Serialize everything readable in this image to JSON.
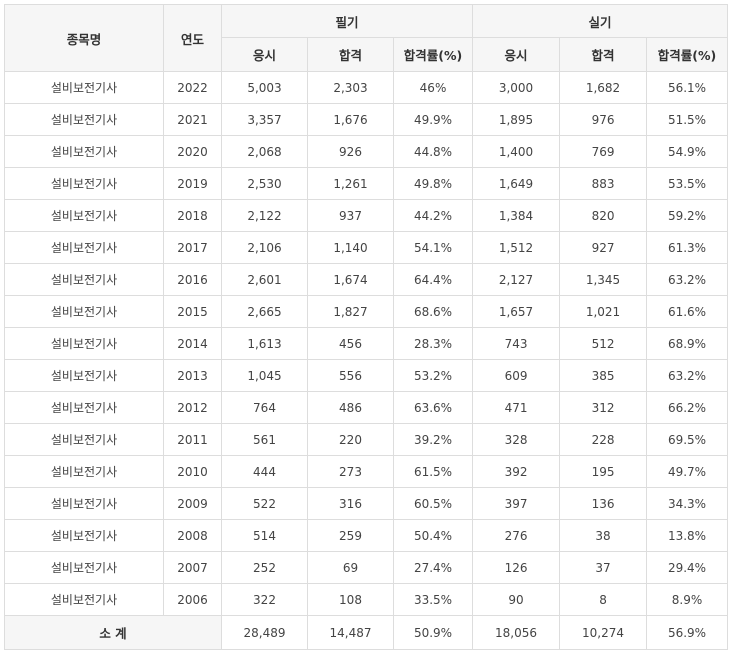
{
  "header": {
    "subject_label": "종목명",
    "year_label": "연도",
    "written_label": "필기",
    "practical_label": "실기",
    "sub": {
      "applicants": "응시",
      "passed": "합격",
      "rate": "합격률(%)"
    }
  },
  "rows": [
    {
      "name": "설비보전기사",
      "year": "2022",
      "w_app": "5,003",
      "w_pass": "2,303",
      "w_rate": "46%",
      "p_app": "3,000",
      "p_pass": "1,682",
      "p_rate": "56.1%"
    },
    {
      "name": "설비보전기사",
      "year": "2021",
      "w_app": "3,357",
      "w_pass": "1,676",
      "w_rate": "49.9%",
      "p_app": "1,895",
      "p_pass": "976",
      "p_rate": "51.5%"
    },
    {
      "name": "설비보전기사",
      "year": "2020",
      "w_app": "2,068",
      "w_pass": "926",
      "w_rate": "44.8%",
      "p_app": "1,400",
      "p_pass": "769",
      "p_rate": "54.9%"
    },
    {
      "name": "설비보전기사",
      "year": "2019",
      "w_app": "2,530",
      "w_pass": "1,261",
      "w_rate": "49.8%",
      "p_app": "1,649",
      "p_pass": "883",
      "p_rate": "53.5%"
    },
    {
      "name": "설비보전기사",
      "year": "2018",
      "w_app": "2,122",
      "w_pass": "937",
      "w_rate": "44.2%",
      "p_app": "1,384",
      "p_pass": "820",
      "p_rate": "59.2%"
    },
    {
      "name": "설비보전기사",
      "year": "2017",
      "w_app": "2,106",
      "w_pass": "1,140",
      "w_rate": "54.1%",
      "p_app": "1,512",
      "p_pass": "927",
      "p_rate": "61.3%"
    },
    {
      "name": "설비보전기사",
      "year": "2016",
      "w_app": "2,601",
      "w_pass": "1,674",
      "w_rate": "64.4%",
      "p_app": "2,127",
      "p_pass": "1,345",
      "p_rate": "63.2%"
    },
    {
      "name": "설비보전기사",
      "year": "2015",
      "w_app": "2,665",
      "w_pass": "1,827",
      "w_rate": "68.6%",
      "p_app": "1,657",
      "p_pass": "1,021",
      "p_rate": "61.6%"
    },
    {
      "name": "설비보전기사",
      "year": "2014",
      "w_app": "1,613",
      "w_pass": "456",
      "w_rate": "28.3%",
      "p_app": "743",
      "p_pass": "512",
      "p_rate": "68.9%"
    },
    {
      "name": "설비보전기사",
      "year": "2013",
      "w_app": "1,045",
      "w_pass": "556",
      "w_rate": "53.2%",
      "p_app": "609",
      "p_pass": "385",
      "p_rate": "63.2%"
    },
    {
      "name": "설비보전기사",
      "year": "2012",
      "w_app": "764",
      "w_pass": "486",
      "w_rate": "63.6%",
      "p_app": "471",
      "p_pass": "312",
      "p_rate": "66.2%"
    },
    {
      "name": "설비보전기사",
      "year": "2011",
      "w_app": "561",
      "w_pass": "220",
      "w_rate": "39.2%",
      "p_app": "328",
      "p_pass": "228",
      "p_rate": "69.5%"
    },
    {
      "name": "설비보전기사",
      "year": "2010",
      "w_app": "444",
      "w_pass": "273",
      "w_rate": "61.5%",
      "p_app": "392",
      "p_pass": "195",
      "p_rate": "49.7%"
    },
    {
      "name": "설비보전기사",
      "year": "2009",
      "w_app": "522",
      "w_pass": "316",
      "w_rate": "60.5%",
      "p_app": "397",
      "p_pass": "136",
      "p_rate": "34.3%"
    },
    {
      "name": "설비보전기사",
      "year": "2008",
      "w_app": "514",
      "w_pass": "259",
      "w_rate": "50.4%",
      "p_app": "276",
      "p_pass": "38",
      "p_rate": "13.8%"
    },
    {
      "name": "설비보전기사",
      "year": "2007",
      "w_app": "252",
      "w_pass": "69",
      "w_rate": "27.4%",
      "p_app": "126",
      "p_pass": "37",
      "p_rate": "29.4%"
    },
    {
      "name": "설비보전기사",
      "year": "2006",
      "w_app": "322",
      "w_pass": "108",
      "w_rate": "33.5%",
      "p_app": "90",
      "p_pass": "8",
      "p_rate": "8.9%"
    }
  ],
  "total": {
    "label": "소 계",
    "w_app": "28,489",
    "w_pass": "14,487",
    "w_rate": "50.9%",
    "p_app": "18,056",
    "p_pass": "10,274",
    "p_rate": "56.9%"
  }
}
